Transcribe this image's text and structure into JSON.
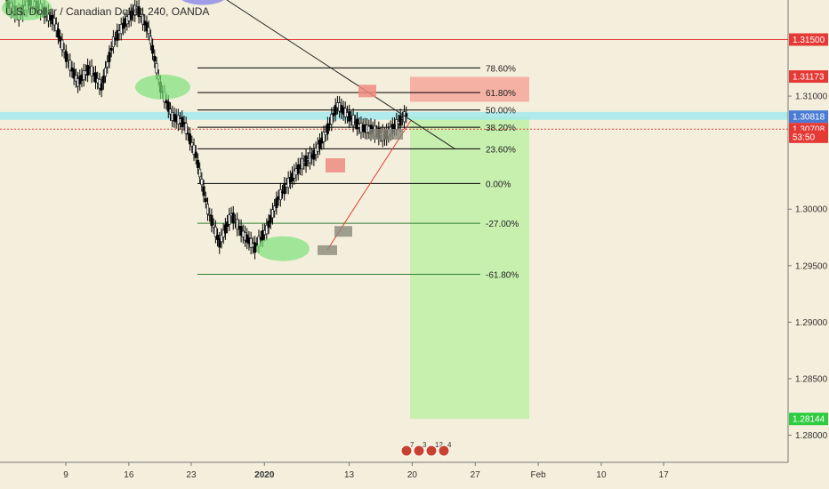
{
  "legend": {
    "title": "U.S. Dollar / Canadian Dollar, 240, OANDA"
  },
  "colors": {
    "background": "#f4efdc",
    "up": "#ffffff",
    "down": "#000000",
    "fib_line": "#000000",
    "fib_ext_line": "#2e7d32",
    "resistance": "#e53935",
    "trendline_red": "#e53935",
    "trendline_black": "#222222",
    "stop_zone": "#f4a79a",
    "target_zone": "#b8f0a0",
    "cyan_band": "#9fe8ee",
    "highlight_green": "#7de27a",
    "highlight_blue": "#7b7be8",
    "supply_box": "#ef8a80",
    "demand_box": "#8a8a7a",
    "tag_blue": "#4a7bd4",
    "tag_red": "#e53935",
    "tag_green": "#2ecc40"
  },
  "chart_data": {
    "type": "candlestick",
    "symbol": "U.S. Dollar / Canadian Dollar",
    "timeframe": "240",
    "y_range": [
      1.2776,
      1.3185
    ],
    "y_ticks": [
      "1.31000",
      "1.30000",
      "1.29500",
      "1.29000",
      "1.28500",
      "1.28000"
    ],
    "x_ticks": [
      {
        "label": "9",
        "pos": 0.0
      },
      {
        "label": "16",
        "pos": 0.093
      },
      {
        "label": "23",
        "pos": 0.185
      },
      {
        "label": "2020",
        "pos": 0.293
      },
      {
        "label": "13",
        "pos": 0.418
      },
      {
        "label": "20",
        "pos": 0.511
      },
      {
        "label": "27",
        "pos": 0.604
      },
      {
        "label": "Feb",
        "pos": 0.697
      },
      {
        "label": "10",
        "pos": 0.79
      },
      {
        "label": "17",
        "pos": 0.882
      }
    ],
    "price_path": [
      [
        0.0,
        1.3182
      ],
      [
        0.02,
        1.3172
      ],
      [
        0.04,
        1.3184
      ],
      [
        0.06,
        1.3176
      ],
      [
        0.08,
        1.3166
      ],
      [
        0.1,
        1.3135
      ],
      [
        0.12,
        1.3112
      ],
      [
        0.14,
        1.3125
      ],
      [
        0.16,
        1.3108
      ],
      [
        0.18,
        1.3148
      ],
      [
        0.2,
        1.3165
      ],
      [
        0.22,
        1.3178
      ],
      [
        0.24,
        1.3158
      ],
      [
        0.26,
        1.3108
      ],
      [
        0.28,
        1.3082
      ],
      [
        0.3,
        1.3076
      ],
      [
        0.32,
        1.3048
      ],
      [
        0.34,
        1.3
      ],
      [
        0.36,
        1.297
      ],
      [
        0.38,
        1.2995
      ],
      [
        0.4,
        1.2978
      ],
      [
        0.42,
        1.2966
      ],
      [
        0.44,
        1.2982
      ],
      [
        0.46,
        1.301
      ],
      [
        0.48,
        1.3026
      ],
      [
        0.5,
        1.304
      ],
      [
        0.52,
        1.3048
      ],
      [
        0.54,
        1.3067
      ],
      [
        0.56,
        1.3092
      ],
      [
        0.58,
        1.3082
      ],
      [
        0.6,
        1.3072
      ],
      [
        0.62,
        1.307
      ],
      [
        0.64,
        1.3064
      ],
      [
        0.66,
        1.3075
      ],
      [
        0.68,
        1.3085
      ]
    ],
    "fib_levels": [
      {
        "label": "78.60%",
        "price": 1.31249
      },
      {
        "label": "61.80%",
        "price": 1.31031
      },
      {
        "label": "50.00%",
        "price": 1.30877
      },
      {
        "label": "38.20%",
        "price": 1.30724
      },
      {
        "label": "23.60%",
        "price": 1.30534
      },
      {
        "label": "0.00%",
        "price": 1.30227
      },
      {
        "label": "-27.00%",
        "price": 1.29875
      },
      {
        "label": "-61.80%",
        "price": 1.29424
      }
    ],
    "price_tags": [
      {
        "label": "1.31500",
        "price": 1.315,
        "color": "#e53935"
      },
      {
        "label": "1.31173",
        "price": 1.31173,
        "color": "#e53935"
      },
      {
        "label": "1.30818",
        "price": 1.30818,
        "color": "#4a7bd4"
      },
      {
        "label": "1.30708",
        "price": 1.30708,
        "color": "#e53935"
      },
      {
        "label": "53:50",
        "price": 1.3064,
        "color": "#e53935"
      },
      {
        "label": "1.28144",
        "price": 1.28144,
        "color": "#2ecc40"
      }
    ],
    "resistance_line": 1.315,
    "event_icons": [
      "7",
      "3",
      "12",
      "4"
    ]
  }
}
